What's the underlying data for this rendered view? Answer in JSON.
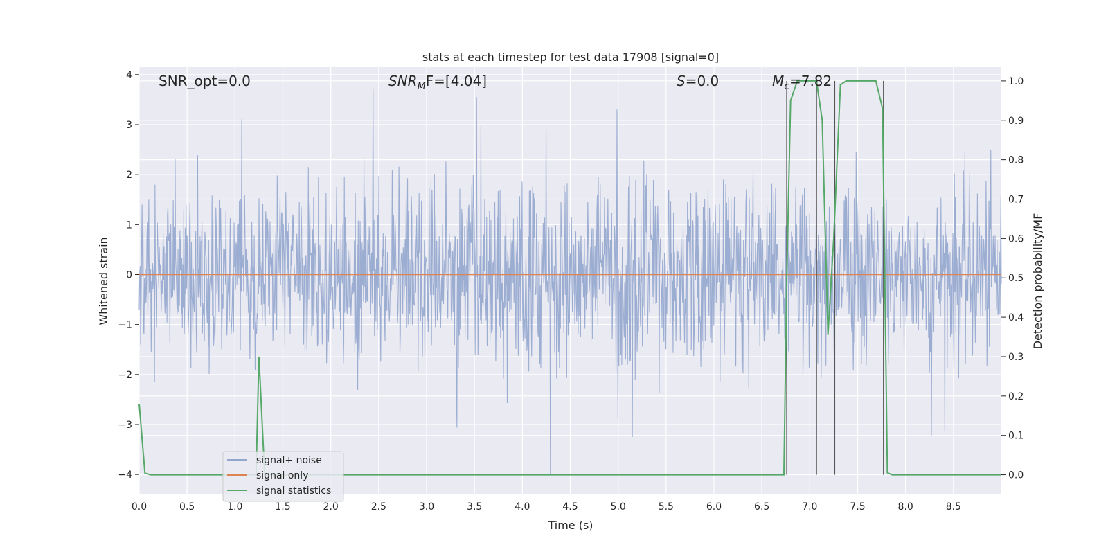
{
  "colors": {
    "plot_bg": "#eaeaf2",
    "grid": "#ffffff",
    "noise": "#93a6ce",
    "signal": "#dd8452",
    "stats": "#55a868",
    "vline": "#555555"
  },
  "chart_data": {
    "type": "line",
    "title": "stats at each timestep for test data 17908 [signal=0]",
    "xlabel": "Time (s)",
    "ylabel_left": "Whitened strain",
    "ylabel_right": "Detection probability/MF",
    "xlim": [
      0,
      9.0
    ],
    "ylim_left": [
      -4.4,
      4.15
    ],
    "ylim_right": [
      -0.05,
      1.035
    ],
    "x_ticks": [
      0.0,
      0.5,
      1.0,
      1.5,
      2.0,
      2.5,
      3.0,
      3.5,
      4.0,
      4.5,
      5.0,
      5.5,
      6.0,
      6.5,
      7.0,
      7.5,
      8.0,
      8.5
    ],
    "x_tick_labels": [
      "0.0",
      "0.5",
      "1.0",
      "1.5",
      "2.0",
      "2.5",
      "3.0",
      "3.5",
      "4.0",
      "4.5",
      "5.0",
      "5.5",
      "6.0",
      "6.5",
      "7.0",
      "7.5",
      "8.0",
      "8.5"
    ],
    "y_ticks_left": [
      -4,
      -3,
      -2,
      -1,
      0,
      1,
      2,
      3,
      4
    ],
    "y_tick_labels_left": [
      "−4",
      "−3",
      "−2",
      "−1",
      "0",
      "1",
      "2",
      "3",
      "4"
    ],
    "y_ticks_right": [
      0.0,
      0.1,
      0.2,
      0.3,
      0.4,
      0.5,
      0.6,
      0.7,
      0.8,
      0.9,
      1.0
    ],
    "y_tick_labels_right": [
      "0.0",
      "0.1",
      "0.2",
      "0.3",
      "0.4",
      "0.5",
      "0.6",
      "0.7",
      "0.8",
      "0.9",
      "1.0"
    ],
    "grid": true,
    "legend_position": "lower-left",
    "annotations": {
      "snr_opt": "SNR_opt=0.0",
      "snr_mf_base": "SNR",
      "snr_mf_sub": "M",
      "snr_mf_rest": "F=[4.04]",
      "s_base": "S",
      "s_rest": "=0.0",
      "mc_base": "M",
      "mc_sub": "c",
      "mc_rest": "=7.82"
    },
    "series": [
      {
        "name": "signal+ noise",
        "axis": "left",
        "description": "Gaussian whitened noise, approximately unit standard deviation, sampled densely over 0-9 s",
        "sample_count": 1800,
        "std": 0.9,
        "notable_peaks": [
          {
            "x": 2.44,
            "y": 3.72
          },
          {
            "x": 3.52,
            "y": 3.55
          },
          {
            "x": 4.99,
            "y": 3.3
          },
          {
            "x": 4.29,
            "y": -4.0
          },
          {
            "x": 5.15,
            "y": -3.25
          },
          {
            "x": 8.27,
            "y": -3.22
          }
        ]
      },
      {
        "name": "signal only",
        "axis": "left",
        "x": [
          0.0,
          9.0
        ],
        "y": [
          0.0,
          0.0
        ]
      },
      {
        "name": "signal statistics",
        "axis": "right",
        "x": [
          0.0,
          0.06,
          0.12,
          1.22,
          1.25,
          1.31,
          1.38,
          6.73,
          6.76,
          6.8,
          6.87,
          7.03,
          7.07,
          7.13,
          7.19,
          7.25,
          7.32,
          7.38,
          7.43,
          7.69,
          7.76,
          7.81,
          7.86,
          9.0
        ],
        "y": [
          0.18,
          0.004,
          0.0,
          0.0,
          0.3,
          0.0,
          0.0,
          0.0,
          0.5,
          0.95,
          1.0,
          1.0,
          1.0,
          0.9,
          0.355,
          0.6,
          0.99,
          1.0,
          1.0,
          1.0,
          0.93,
          0.005,
          0.0,
          0.0
        ]
      }
    ],
    "vertical_lines": [
      {
        "x": 6.76,
        "y_top": 1.0,
        "y_bottom": 0.0
      },
      {
        "x": 7.07,
        "y_top": 1.0,
        "y_bottom": 0.0
      },
      {
        "x": 7.26,
        "y_top": 1.0,
        "y_bottom": 0.0
      },
      {
        "x": 7.77,
        "y_top": 1.0,
        "y_bottom": 0.0
      }
    ]
  }
}
